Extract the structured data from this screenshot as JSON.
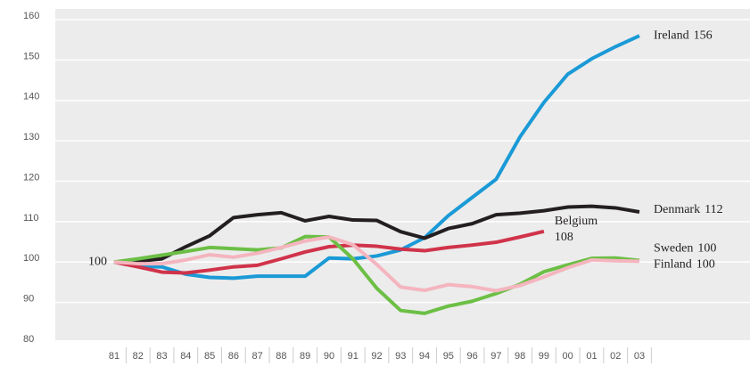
{
  "chart_data": {
    "type": "line",
    "categories": [
      "81",
      "82",
      "83",
      "84",
      "85",
      "86",
      "87",
      "88",
      "89",
      "90",
      "91",
      "92",
      "93",
      "94",
      "95",
      "96",
      "97",
      "98",
      "99",
      "00",
      "01",
      "02",
      "03"
    ],
    "ylim": [
      80,
      160
    ],
    "yticks": [
      80,
      90,
      100,
      110,
      120,
      130,
      140,
      150,
      160
    ],
    "grid": true,
    "series": [
      {
        "name": "Ireland",
        "color": "#1a9ad6",
        "values": [
          100,
          99,
          98.8,
          97,
          96.2,
          96,
          96.5,
          96.5,
          96.5,
          101,
          100.8,
          101.5,
          103,
          106,
          111.5,
          116,
          120.5,
          131,
          139.5,
          146.5,
          150.3,
          153.3,
          156
        ],
        "value_labels": [
          "100",
          null,
          null,
          null,
          null,
          null,
          null,
          null,
          null,
          null,
          null,
          null,
          null,
          null,
          null,
          null,
          null,
          null,
          null,
          null,
          null,
          null,
          "156"
        ]
      },
      {
        "name": "Denmark",
        "color": "#231f20",
        "values": [
          100,
          100.2,
          100.8,
          103.8,
          106.5,
          111,
          111.7,
          112.2,
          110.2,
          111.3,
          110.4,
          110.3,
          107.5,
          105.9,
          108.3,
          109.5,
          111.7,
          112.1,
          112.7,
          113.6,
          113.8,
          113.4,
          112.4
        ],
        "value_labels": [
          null,
          null,
          null,
          null,
          null,
          null,
          null,
          null,
          null,
          null,
          null,
          null,
          null,
          null,
          null,
          null,
          null,
          null,
          null,
          null,
          null,
          null,
          "112"
        ]
      },
      {
        "name": "Belgium",
        "color": "#d0334a",
        "values": [
          100,
          98.8,
          97.5,
          97.3,
          98,
          98.8,
          99.2,
          100.8,
          102.5,
          103.8,
          104.2,
          103.9,
          103.2,
          102.8,
          103.6,
          104.2,
          104.9,
          106.2,
          107.6,
          null,
          null,
          null,
          null
        ],
        "value_labels": [
          null,
          null,
          null,
          null,
          null,
          null,
          null,
          null,
          null,
          null,
          null,
          null,
          null,
          null,
          null,
          null,
          null,
          null,
          "108",
          null,
          null,
          null,
          null
        ]
      },
      {
        "name": "Sweden",
        "color": "#6cbf45",
        "values": [
          100,
          100.8,
          101.7,
          102.6,
          103.6,
          103.3,
          103,
          103.5,
          106.3,
          106.2,
          100.8,
          93.5,
          88,
          87.3,
          89.1,
          90.3,
          92.2,
          94.5,
          97.6,
          99.3,
          100.9,
          101,
          100.4
        ],
        "value_labels": [
          null,
          null,
          null,
          null,
          null,
          null,
          null,
          null,
          null,
          null,
          null,
          null,
          null,
          null,
          null,
          null,
          null,
          null,
          null,
          null,
          null,
          null,
          "100"
        ]
      },
      {
        "name": "Finland",
        "color": "#f4b5bf",
        "values": [
          100,
          99.6,
          99.6,
          100.5,
          101.8,
          101.2,
          102.2,
          103.6,
          105.2,
          106.2,
          104.3,
          99.4,
          93.8,
          93,
          94.4,
          93.9,
          92.9,
          94.2,
          96.3,
          98.6,
          100.5,
          100.3,
          100.2
        ],
        "value_labels": [
          null,
          null,
          null,
          null,
          null,
          null,
          null,
          null,
          null,
          null,
          null,
          null,
          null,
          null,
          null,
          null,
          null,
          null,
          null,
          null,
          null,
          null,
          "100"
        ]
      }
    ]
  }
}
